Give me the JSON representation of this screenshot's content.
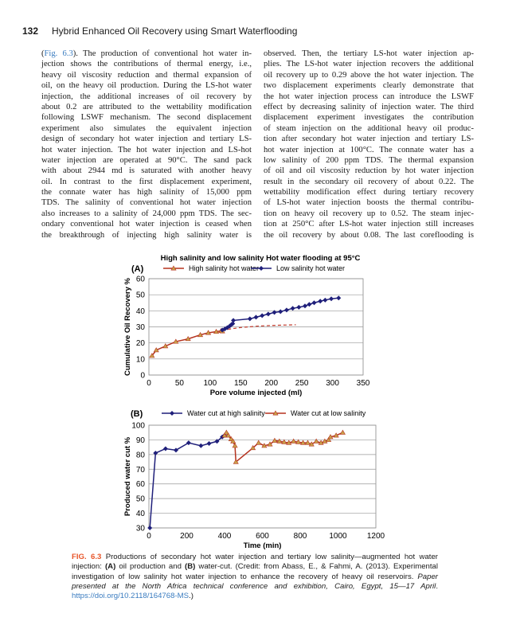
{
  "header": {
    "page_number": "132",
    "running_title": "Hybrid Enhanced Oil Recovery using Smart Waterflooding"
  },
  "left_column": {
    "first_line": {
      "prefix": "(",
      "link": "Fig. 6.3",
      "suffix": "). The production of conventional hot water in-"
    },
    "lines": [
      "jection shows the contributions of thermal energy, i.e.,",
      "heavy oil viscosity reduction and thermal expansion of",
      "oil, on the heavy oil production. During the LS-hot water",
      "injection, the additional increases of oil recovery by",
      "about 0.2 are attributed to the wettability modification",
      "following LSWF mechanism. The second displacement",
      "experiment also simulates the equivalent injection",
      "design of secondary hot water injection and tertiary LS-",
      "hot water injection. The hot water injection and LS-hot",
      "water injection are operated at 90°C. The sand pack",
      "with about 2944 md is saturated with another heavy",
      "oil. In contrast to the first displacement experiment,",
      "the connate water has high salinity of 15,000 ppm",
      "TDS. The salinity of conventional hot water injection",
      "also increases to a salinity of 24,000 ppm TDS. The sec-",
      "ondary conventional hot water injection is ceased when",
      "the breakthrough of injecting high salinity water is"
    ]
  },
  "right_column": {
    "lines": [
      "observed. Then, the tertiary LS-hot water injection ap-",
      "plies. The LS-hot water injection recovers the additional",
      "oil recovery up to 0.29 above the hot water injection. The",
      "two displacement experiments clearly demonstrate that",
      "the hot water injection process can introduce the LSWF",
      "effect by decreasing salinity of injection water. The third",
      "displacement experiment investigates the contribution",
      "of steam injection on the additional heavy oil produc-",
      "tion after secondary hot water injection and tertiary LS-",
      "hot water injection at 100°C. The connate water has a",
      "low salinity of 200 ppm TDS. The thermal expansion",
      "of oil and oil viscosity reduction by hot water injection",
      "result in the secondary oil recovery of about 0.22. The",
      "wettability modification effect during tertiary recovery",
      "of LS-hot water injection boosts the thermal contribu-",
      "tion on heavy oil recovery up to 0.52. The steam injec-",
      "tion at 250°C after LS-hot water injection still increases",
      "the oil recovery by about 0.08. The last coreflooding is"
    ]
  },
  "chart_data": [
    {
      "type": "line",
      "panel_label": "(A)",
      "title": "High salinity and low salinity Hot water flooding at 95°C",
      "xlabel": "Pore volume injected (ml)",
      "ylabel": "Cumulative Oil Recovery %",
      "xlim": [
        0,
        350
      ],
      "ylim": [
        0,
        60
      ],
      "xticks": [
        "0",
        "50",
        "100",
        "150",
        "200",
        "250",
        "300",
        "350"
      ],
      "yticks": [
        "0",
        "10",
        "20",
        "30",
        "40",
        "50",
        "60"
      ],
      "grid": "horizontal",
      "legend": "top",
      "series": [
        {
          "name": "High salinity hot water",
          "color": "#b5321e",
          "marker": "triangle",
          "x": [
            5,
            12,
            27,
            44,
            64,
            84,
            97,
            110,
            118,
            120
          ],
          "y": [
            12,
            15.5,
            18,
            20.8,
            22.5,
            25,
            26.3,
            27,
            27.5,
            27.3
          ]
        },
        {
          "name": "",
          "color": "#c0392b",
          "style": "dashed",
          "x": [
            120,
            150,
            180,
            210,
            240
          ],
          "y": [
            28,
            29.6,
            30.5,
            31,
            31.3
          ]
        },
        {
          "name": "Low salinity hot water",
          "color": "#1f1f7a",
          "marker": "diamond",
          "x": [
            120,
            124,
            128,
            132,
            135,
            137,
            138,
            165,
            175,
            185,
            195,
            205,
            215,
            225,
            235,
            245,
            255,
            262,
            270,
            280,
            288,
            298,
            310
          ],
          "y": [
            28,
            28.7,
            29.5,
            30.5,
            31.5,
            32,
            34,
            35,
            36,
            37,
            38,
            39,
            39.5,
            40.5,
            41.5,
            42.2,
            43,
            44,
            45,
            46,
            46.7,
            47.5,
            48
          ]
        }
      ]
    },
    {
      "type": "line",
      "panel_label": "(B)",
      "xlabel": "Time (min)",
      "ylabel": "Produced water cut %",
      "xlim": [
        0,
        1200
      ],
      "ylim": [
        30,
        100
      ],
      "xticks": [
        "0",
        "200",
        "400",
        "600",
        "800",
        "1000",
        "1200"
      ],
      "yticks": [
        "30",
        "40",
        "50",
        "60",
        "70",
        "80",
        "90",
        "100"
      ],
      "grid": "horizontal",
      "legend": "top",
      "series": [
        {
          "name": "Water cut at high salinity",
          "color": "#1f1f7a",
          "marker": "diamond",
          "x": [
            5,
            35,
            88,
            143,
            210,
            275,
            318,
            360,
            388,
            400
          ],
          "y": [
            30,
            81,
            84,
            83,
            88,
            86,
            87.5,
            89,
            92,
            93
          ]
        },
        {
          "name": "Water cut at low salinity",
          "color": "#b5321e",
          "marker": "triangle",
          "x": [
            400,
            410,
            420,
            435,
            445,
            455,
            460,
            550,
            580,
            610,
            640,
            665,
            690,
            715,
            740,
            765,
            790,
            815,
            840,
            860,
            885,
            910,
            930,
            950,
            960,
            990,
            1025
          ],
          "y": [
            93,
            95,
            93,
            90.5,
            89,
            86,
            75,
            84.5,
            88,
            86,
            87,
            89.5,
            89,
            88.5,
            88,
            89,
            88.5,
            88,
            88,
            87,
            89,
            88,
            89,
            90,
            92,
            93,
            95
          ]
        }
      ]
    }
  ],
  "caption": {
    "fig_label": "FIG. 6.3",
    "text1": " Productions of secondary hot water injection and tertiary low salinity—augmented hot water injection: ",
    "a": "(A)",
    "text2": " oil production and ",
    "b": "(B)",
    "text3": " water-cut. (Credit: from Abass, E., & Fahmi, A. (2013). Experimental investigation of low salinity hot water injection to enhance the recovery of heavy oil reservoirs. ",
    "italic": "Paper presented at the North Africa technical conference and exhibition, Cairo, Egypt, 15—17 April",
    "text4": ". ",
    "doi": "https://doi.org/10.2118/164768-MS",
    "text5": ".)"
  }
}
